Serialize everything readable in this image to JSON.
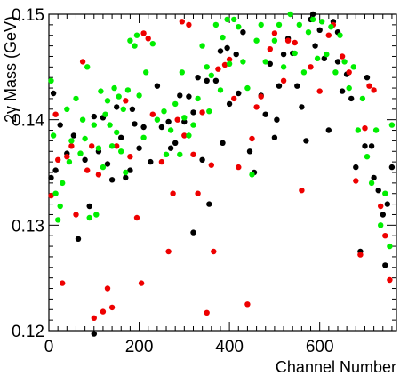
{
  "chart_data": {
    "type": "scatter",
    "title": "",
    "xlabel": "Channel Number",
    "ylabel": "2γ Mass (GeV)",
    "xlim": [
      0,
      770
    ],
    "ylim": [
      0.12,
      0.15
    ],
    "xticks": [
      0,
      200,
      400,
      600
    ],
    "xtick_labels": [
      "0",
      "200",
      "400",
      "600"
    ],
    "yticks": [
      0.12,
      0.13,
      0.14,
      0.15
    ],
    "ytick_labels": [
      "0.12",
      "0.13",
      "0.14",
      "0.15"
    ],
    "grid": false,
    "legend": "none",
    "series": [
      {
        "color": "#000000",
        "points": [
          [
            5,
            0.1345
          ],
          [
            10,
            0.1425
          ],
          [
            15,
            0.1352
          ],
          [
            25,
            0.1395
          ],
          [
            40,
            0.1368
          ],
          [
            55,
            0.1385
          ],
          [
            65,
            0.1287
          ],
          [
            80,
            0.1362
          ],
          [
            90,
            0.1318
          ],
          [
            100,
            0.1403
          ],
          [
            110,
            0.137
          ],
          [
            120,
            0.1402
          ],
          [
            130,
            0.1358
          ],
          [
            140,
            0.1343
          ],
          [
            150,
            0.1412
          ],
          [
            160,
            0.1383
          ],
          [
            170,
            0.1345
          ],
          [
            180,
            0.1352
          ],
          [
            185,
            0.141
          ],
          [
            190,
            0.1396
          ],
          [
            200,
            0.1373
          ],
          [
            210,
            0.1393
          ],
          [
            225,
            0.136
          ],
          [
            240,
            0.1432
          ],
          [
            250,
            0.1393
          ],
          [
            265,
            0.1398
          ],
          [
            270,
            0.1373
          ],
          [
            280,
            0.1378
          ],
          [
            290,
            0.1423
          ],
          [
            300,
            0.1398
          ],
          [
            310,
            0.1422
          ],
          [
            320,
            0.1407
          ],
          [
            330,
            0.144
          ],
          [
            340,
            0.1362
          ],
          [
            350,
            0.1437
          ],
          [
            355,
            0.132
          ],
          [
            370,
            0.1437
          ],
          [
            380,
            0.1465
          ],
          [
            385,
            0.1378
          ],
          [
            395,
            0.1468
          ],
          [
            400,
            0.1415
          ],
          [
            415,
            0.1462
          ],
          [
            420,
            0.1425
          ],
          [
            430,
            0.1483
          ],
          [
            445,
            0.137
          ],
          [
            455,
            0.135
          ],
          [
            470,
            0.1423
          ],
          [
            480,
            0.1405
          ],
          [
            490,
            0.1453
          ],
          [
            500,
            0.1383
          ],
          [
            505,
            0.14
          ],
          [
            510,
            0.1432
          ],
          [
            520,
            0.1462
          ],
          [
            530,
            0.1477
          ],
          [
            540,
            0.1463
          ],
          [
            550,
            0.1432
          ],
          [
            560,
            0.1412
          ],
          [
            570,
            0.138
          ],
          [
            580,
            0.1495
          ],
          [
            590,
            0.147
          ],
          [
            600,
            0.1485
          ],
          [
            610,
            0.1458
          ],
          [
            620,
            0.139
          ],
          [
            630,
            0.1493
          ],
          [
            640,
            0.1483
          ],
          [
            650,
            0.1427
          ],
          [
            660,
            0.1443
          ],
          [
            670,
            0.142
          ],
          [
            680,
            0.1355
          ],
          [
            690,
            0.1275
          ],
          [
            700,
            0.1375
          ],
          [
            705,
            0.144
          ],
          [
            715,
            0.1375
          ],
          [
            720,
            0.1345
          ],
          [
            730,
            0.1333
          ],
          [
            740,
            0.131
          ],
          [
            745,
            0.1262
          ],
          [
            750,
            0.132
          ],
          [
            760,
            0.1355
          ],
          [
            100,
            0.1197
          ],
          [
            320,
            0.1293
          ],
          [
            585,
            0.15
          ],
          [
            640,
            0.1455
          ]
        ]
      },
      {
        "color": "#ee0000",
        "points": [
          [
            5,
            0.1328
          ],
          [
            15,
            0.1405
          ],
          [
            20,
            0.1362
          ],
          [
            30,
            0.1245
          ],
          [
            40,
            0.1365
          ],
          [
            50,
            0.1375
          ],
          [
            60,
            0.131
          ],
          [
            75,
            0.1455
          ],
          [
            85,
            0.1352
          ],
          [
            95,
            0.1375
          ],
          [
            100,
            0.1212
          ],
          [
            110,
            0.1348
          ],
          [
            120,
            0.1218
          ],
          [
            130,
            0.124
          ],
          [
            140,
            0.1222
          ],
          [
            150,
            0.1375
          ],
          [
            170,
            0.1418
          ],
          [
            180,
            0.1365
          ],
          [
            195,
            0.1307
          ],
          [
            205,
            0.1245
          ],
          [
            210,
            0.1482
          ],
          [
            220,
            0.1477
          ],
          [
            230,
            0.1405
          ],
          [
            250,
            0.136
          ],
          [
            265,
            0.1275
          ],
          [
            275,
            0.133
          ],
          [
            285,
            0.14
          ],
          [
            295,
            0.1493
          ],
          [
            300,
            0.1385
          ],
          [
            310,
            0.149
          ],
          [
            320,
            0.1367
          ],
          [
            330,
            0.133
          ],
          [
            340,
            0.1407
          ],
          [
            350,
            0.1217
          ],
          [
            360,
            0.1357
          ],
          [
            365,
            0.1275
          ],
          [
            375,
            0.1448
          ],
          [
            390,
            0.1452
          ],
          [
            400,
            0.1457
          ],
          [
            410,
            0.142
          ],
          [
            420,
            0.1355
          ],
          [
            440,
            0.1225
          ],
          [
            450,
            0.1382
          ],
          [
            460,
            0.1412
          ],
          [
            470,
            0.1422
          ],
          [
            490,
            0.1467
          ],
          [
            500,
            0.1482
          ],
          [
            520,
            0.1437
          ],
          [
            530,
            0.1475
          ],
          [
            545,
            0.1473
          ],
          [
            560,
            0.1333
          ],
          [
            580,
            0.145
          ],
          [
            600,
            0.1427
          ],
          [
            620,
            0.148
          ],
          [
            630,
            0.149
          ],
          [
            650,
            0.146
          ],
          [
            665,
            0.1445
          ],
          [
            680,
            0.1342
          ],
          [
            690,
            0.1272
          ],
          [
            700,
            0.1392
          ],
          [
            710,
            0.1432
          ],
          [
            720,
            0.1428
          ],
          [
            735,
            0.1318
          ],
          [
            745,
            0.129
          ],
          [
            755,
            0.1248
          ]
        ]
      },
      {
        "color": "#00ee00",
        "points": [
          [
            5,
            0.1437
          ],
          [
            10,
            0.1385
          ],
          [
            15,
            0.133
          ],
          [
            20,
            0.1305
          ],
          [
            30,
            0.134
          ],
          [
            40,
            0.141
          ],
          [
            50,
            0.138
          ],
          [
            60,
            0.142
          ],
          [
            70,
            0.1368
          ],
          [
            75,
            0.14
          ],
          [
            80,
            0.1382
          ],
          [
            90,
            0.1307
          ],
          [
            100,
            0.1395
          ],
          [
            105,
            0.131
          ],
          [
            110,
            0.1373
          ],
          [
            115,
            0.1427
          ],
          [
            120,
            0.1355
          ],
          [
            125,
            0.1405
          ],
          [
            130,
            0.1418
          ],
          [
            135,
            0.1395
          ],
          [
            140,
            0.1375
          ],
          [
            145,
            0.143
          ],
          [
            150,
            0.1388
          ],
          [
            155,
            0.1422
          ],
          [
            160,
            0.137
          ],
          [
            165,
            0.141
          ],
          [
            170,
            0.135
          ],
          [
            175,
            0.1428
          ],
          [
            180,
            0.1475
          ],
          [
            190,
            0.147
          ],
          [
            200,
            0.1423
          ],
          [
            210,
            0.1383
          ],
          [
            215,
            0.1445
          ],
          [
            230,
            0.1472
          ],
          [
            240,
            0.14
          ],
          [
            255,
            0.1408
          ],
          [
            260,
            0.1367
          ],
          [
            270,
            0.139
          ],
          [
            280,
            0.1415
          ],
          [
            290,
            0.1367
          ],
          [
            295,
            0.1445
          ],
          [
            300,
            0.1402
          ],
          [
            310,
            0.1385
          ],
          [
            320,
            0.1395
          ],
          [
            330,
            0.142
          ],
          [
            340,
            0.147
          ],
          [
            350,
            0.145
          ],
          [
            355,
            0.1408
          ],
          [
            360,
            0.1442
          ],
          [
            370,
            0.149
          ],
          [
            380,
            0.1428
          ],
          [
            385,
            0.1478
          ],
          [
            395,
            0.1495
          ],
          [
            400,
            0.1453
          ],
          [
            410,
            0.1495
          ],
          [
            420,
            0.1488
          ],
          [
            430,
            0.1455
          ],
          [
            440,
            0.143
          ],
          [
            450,
            0.1348
          ],
          [
            460,
            0.1475
          ],
          [
            470,
            0.149
          ],
          [
            480,
            0.1455
          ],
          [
            500,
            0.1475
          ],
          [
            510,
            0.149
          ],
          [
            520,
            0.145
          ],
          [
            535,
            0.15
          ],
          [
            545,
            0.1463
          ],
          [
            555,
            0.149
          ],
          [
            565,
            0.1445
          ],
          [
            575,
            0.1483
          ],
          [
            585,
            0.1495
          ],
          [
            595,
            0.1458
          ],
          [
            605,
            0.1493
          ],
          [
            615,
            0.1462
          ],
          [
            625,
            0.1488
          ],
          [
            635,
            0.1445
          ],
          [
            645,
            0.148
          ],
          [
            655,
            0.1455
          ],
          [
            665,
            0.143
          ],
          [
            675,
            0.145
          ],
          [
            685,
            0.139
          ],
          [
            695,
            0.142
          ],
          [
            705,
            0.1365
          ],
          [
            715,
            0.134
          ],
          [
            725,
            0.139
          ],
          [
            735,
            0.13
          ],
          [
            745,
            0.133
          ],
          [
            755,
            0.128
          ],
          [
            760,
            0.1395
          ],
          [
            25,
            0.1318
          ],
          [
            45,
            0.136
          ],
          [
            85,
            0.145
          ],
          [
            195,
            0.148
          ]
        ]
      }
    ]
  }
}
